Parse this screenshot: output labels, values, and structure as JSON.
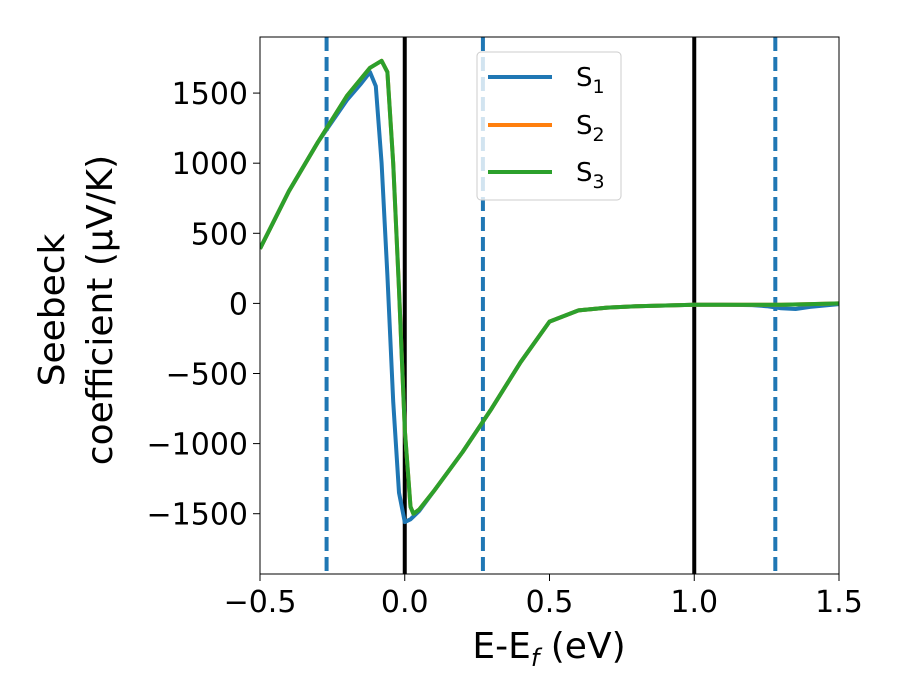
{
  "chart_data": {
    "type": "line",
    "xlabel": "E-E",
    "xlabel_sub": "f",
    "xlabel_unit": " (eV)",
    "ylabel_line1": "Seebeck",
    "ylabel_line2": "coefficient  (μV/K)",
    "xlim": [
      -0.5,
      1.5
    ],
    "ylim": [
      -1930,
      1900
    ],
    "xticks": [
      -0.5,
      0.0,
      0.5,
      1.0,
      1.5
    ],
    "xtick_labels": [
      "−0.5",
      "0.0",
      "0.5",
      "1.0",
      "1.5"
    ],
    "yticks": [
      -1500,
      -1000,
      -500,
      0,
      500,
      1000,
      1500
    ],
    "ytick_labels": [
      "−1500",
      "−1000",
      "−500",
      "0",
      "500",
      "1000",
      "1500"
    ],
    "grid": false,
    "legend_position": "top-center",
    "vlines": [
      {
        "x": -0.27,
        "style": "dashed",
        "color": "#1f77b4"
      },
      {
        "x": 0.0,
        "style": "solid",
        "color": "#000000"
      },
      {
        "x": 0.27,
        "style": "dashed",
        "color": "#1f77b4"
      },
      {
        "x": 1.0,
        "style": "solid",
        "color": "#000000"
      },
      {
        "x": 1.28,
        "style": "dashed",
        "color": "#1f77b4"
      }
    ],
    "series": [
      {
        "name": "S",
        "sub": "1",
        "color": "#1f77b4",
        "x": [
          -0.5,
          -0.4,
          -0.3,
          -0.2,
          -0.15,
          -0.12,
          -0.1,
          -0.08,
          -0.06,
          -0.04,
          -0.02,
          0.0,
          0.01,
          0.02,
          0.03,
          0.05,
          0.1,
          0.2,
          0.3,
          0.4,
          0.5,
          0.6,
          0.7,
          0.8,
          0.9,
          1.0,
          1.1,
          1.2,
          1.25,
          1.3,
          1.35,
          1.4,
          1.5
        ],
        "y": [
          390,
          800,
          1150,
          1450,
          1570,
          1650,
          1550,
          1000,
          200,
          -700,
          -1350,
          -1560,
          -1550,
          -1540,
          -1520,
          -1480,
          -1340,
          -1060,
          -750,
          -420,
          -130,
          -50,
          -30,
          -20,
          -15,
          -10,
          -10,
          -12,
          -20,
          -35,
          -40,
          -25,
          -5
        ]
      },
      {
        "name": "S",
        "sub": "2",
        "color": "#ff7f0e",
        "x": [
          -0.5,
          -0.4,
          -0.3,
          -0.2,
          -0.12,
          -0.08,
          -0.06,
          -0.04,
          -0.02,
          0.0,
          0.02,
          0.03,
          0.05,
          0.1,
          0.2,
          0.3,
          0.4,
          0.5,
          0.6,
          0.7,
          0.8,
          0.9,
          1.0,
          1.1,
          1.2,
          1.3,
          1.4,
          1.5
        ],
        "y": [
          390,
          800,
          1150,
          1480,
          1680,
          1730,
          1650,
          1000,
          100,
          -900,
          -1450,
          -1500,
          -1470,
          -1340,
          -1060,
          -750,
          -420,
          -130,
          -50,
          -30,
          -20,
          -15,
          -10,
          -10,
          -10,
          -10,
          -5,
          0
        ]
      },
      {
        "name": "S",
        "sub": "3",
        "color": "#2ca02c",
        "x": [
          -0.5,
          -0.4,
          -0.3,
          -0.2,
          -0.12,
          -0.08,
          -0.06,
          -0.04,
          -0.02,
          0.0,
          0.02,
          0.03,
          0.05,
          0.1,
          0.2,
          0.3,
          0.4,
          0.5,
          0.6,
          0.7,
          0.8,
          0.9,
          1.0,
          1.1,
          1.2,
          1.3,
          1.4,
          1.5
        ],
        "y": [
          390,
          800,
          1150,
          1480,
          1680,
          1730,
          1650,
          1000,
          100,
          -900,
          -1450,
          -1500,
          -1470,
          -1340,
          -1060,
          -750,
          -420,
          -130,
          -50,
          -30,
          -20,
          -15,
          -10,
          -10,
          -10,
          -10,
          -5,
          0
        ]
      }
    ]
  }
}
